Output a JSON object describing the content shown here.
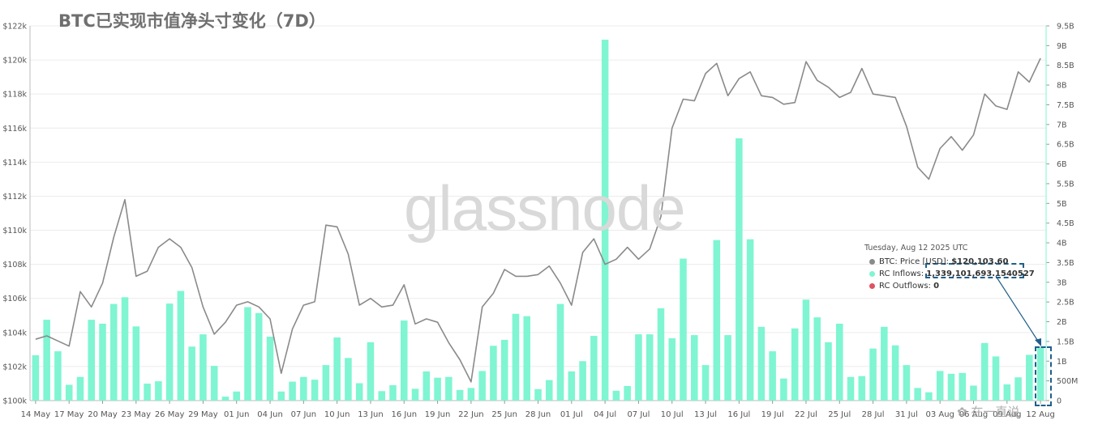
{
  "header": {
    "title": "BTC已实现市值净头寸变化（7D）"
  },
  "watermark": "glassnode",
  "corner_mark": "✿ 在一直说",
  "colors": {
    "price_line": "#8a8a8a",
    "inflow_bar": "#7ff5d2",
    "outflow_bar": "#e05260",
    "grid": "#ececec",
    "axis_text": "#555555"
  },
  "tooltip": {
    "date": "Tuesday, Aug 12 2025 UTC",
    "rows": [
      {
        "label": "BTC: Price [USD]: ",
        "value": "$120,103.60",
        "color": "#8a8a8a"
      },
      {
        "label": "RC Inflows: ",
        "value": "1,339,101,693.1540527",
        "color": "#7ff5d2"
      },
      {
        "label": "RC Outflows: ",
        "value": "0",
        "color": "#e05260"
      }
    ]
  },
  "chart_data": {
    "type": "bar+line",
    "title": "BTC已实现市值净头寸变化（7D）",
    "x_tick_labels": [
      "14 May",
      "17 May",
      "20 May",
      "23 May",
      "26 May",
      "29 May",
      "01 Jun",
      "04 Jun",
      "07 Jun",
      "10 Jun",
      "13 Jun",
      "16 Jun",
      "19 Jun",
      "22 Jun",
      "25 Jun",
      "28 Jun",
      "01 Jul",
      "04 Jul",
      "07 Jul",
      "10 Jul",
      "13 Jul",
      "16 Jul",
      "19 Jul",
      "22 Jul",
      "25 Jul",
      "28 Jul",
      "31 Jul",
      "03 Aug",
      "06 Aug",
      "09 Aug",
      "12 Aug"
    ],
    "x_tick_texts": [
      "14 May",
      "17 May",
      "20 May",
      "23 May",
      "26 May",
      "29 May",
      "01 Jun",
      "04 Jun",
      "07 Jun",
      "10 Jun",
      "13 Jun",
      "16 Jun",
      "19 Jun",
      "22 Jun",
      "25 Jun",
      "28 Jun",
      "01 Jul",
      "04 Jul",
      "07 Jul",
      "10 Jul",
      "13 Jul",
      "16 Jul",
      "19 Jul",
      "22 Jul",
      "25 Jul",
      "28 Jul",
      "31 Jul",
      "03 Aug",
      "06 Aug",
      "09 Aug",
      "12 Aug"
    ],
    "left_axis": {
      "ylim": [
        100000,
        122000
      ],
      "ticks": [
        100000,
        102000,
        104000,
        106000,
        108000,
        110000,
        112000,
        114000,
        116000,
        118000,
        120000,
        122000
      ],
      "tick_labels": [
        "$100k",
        "$102k",
        "$104k",
        "$106k",
        "$108k",
        "$110k",
        "$112k",
        "$114k",
        "$116k",
        "$118k",
        "$120k",
        "$122k"
      ]
    },
    "right_axis": {
      "ylim": [
        0,
        9500000000
      ],
      "ticks": [
        0,
        500000000,
        1000000000,
        1500000000,
        2000000000,
        2500000000,
        3000000000,
        3500000000,
        4000000000,
        4500000000,
        5000000000,
        5500000000,
        6000000000,
        6500000000,
        7000000000,
        7500000000,
        8000000000,
        8500000000,
        9000000000,
        9500000000
      ],
      "tick_labels": [
        "0",
        "500M",
        "1B",
        "1.5B",
        "2B",
        "2.5B",
        "3B",
        "3.5B",
        "4B",
        "4.5B",
        "5B",
        "5.5B",
        "6B",
        "6.5B",
        "7B",
        "7.5B",
        "8B",
        "8.5B",
        "9B",
        "9.5B"
      ]
    },
    "grid": true,
    "series": [
      {
        "name": "BTC: Price [USD]",
        "type": "line",
        "axis": "left",
        "values": [
          103600,
          103800,
          103500,
          103200,
          106400,
          105500,
          106900,
          109600,
          111800,
          107300,
          107600,
          109000,
          109500,
          109000,
          107800,
          105500,
          103900,
          104600,
          105600,
          105800,
          105500,
          104800,
          101600,
          104200,
          105600,
          105800,
          110300,
          110200,
          108600,
          105600,
          106000,
          105500,
          105600,
          106800,
          104500,
          104800,
          104600,
          103400,
          102400,
          101100,
          105500,
          106300,
          107700,
          107300,
          107300,
          107400,
          107900,
          106900,
          105600,
          108700,
          109500,
          108000,
          108300,
          109000,
          108300,
          108900,
          110800,
          116000,
          117700,
          117600,
          119200,
          119800,
          117900,
          118900,
          119300,
          117900,
          117800,
          117400,
          117500,
          119900,
          118800,
          118400,
          117800,
          118100,
          119500,
          118000,
          117900,
          117800,
          116100,
          113700,
          113000,
          114800,
          115500,
          114700,
          115600,
          118000,
          117300,
          117100,
          119300,
          118700,
          120100
        ]
      },
      {
        "name": "RC Inflows",
        "type": "bar",
        "axis": "right",
        "values": [
          1150000000,
          2050000000,
          1250000000,
          400000000,
          600000000,
          2050000000,
          1950000000,
          2450000000,
          2620000000,
          1880000000,
          430000000,
          490000000,
          2460000000,
          2780000000,
          1370000000,
          1680000000,
          880000000,
          100000000,
          230000000,
          2370000000,
          2220000000,
          1620000000,
          230000000,
          480000000,
          600000000,
          530000000,
          900000000,
          1600000000,
          1080000000,
          440000000,
          1480000000,
          240000000,
          390000000,
          2030000000,
          300000000,
          740000000,
          580000000,
          600000000,
          270000000,
          320000000,
          750000000,
          1390000000,
          1540000000,
          2200000000,
          2140000000,
          290000000,
          520000000,
          2450000000,
          740000000,
          1000000000,
          1640000000,
          9150000000,
          250000000,
          370000000,
          1680000000,
          1680000000,
          2340000000,
          1580000000,
          3600000000,
          1660000000,
          900000000,
          4070000000,
          1660000000,
          6650000000,
          4090000000,
          1870000000,
          1250000000,
          560000000,
          1830000000,
          2560000000,
          2110000000,
          1480000000,
          1950000000,
          600000000,
          620000000,
          1320000000,
          1870000000,
          1400000000,
          900000000,
          320000000,
          210000000,
          750000000,
          680000000,
          700000000,
          380000000,
          1460000000,
          1120000000,
          410000000,
          590000000,
          1160000000,
          1340000000
        ]
      },
      {
        "name": "RC Outflows",
        "type": "bar",
        "axis": "right",
        "values": []
      }
    ]
  }
}
